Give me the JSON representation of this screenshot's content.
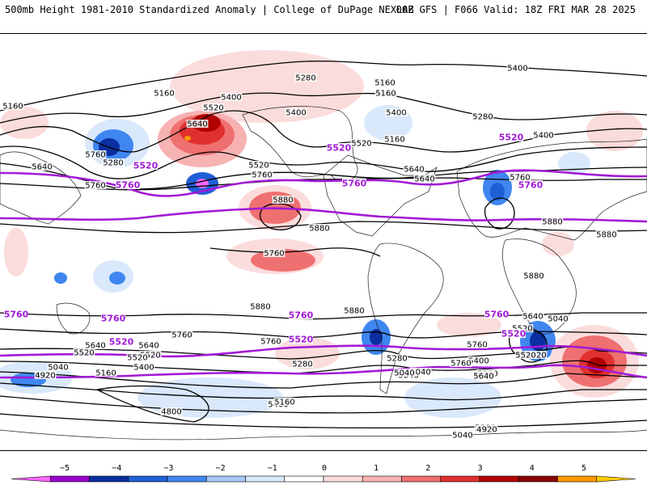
{
  "header": {
    "left": "500mb Height 1981-2010 Standardized Anomaly | College of DuPage NEXLAB",
    "right": "00Z GFS | F066 Valid: 18Z FRI MAR 28 2025"
  },
  "colors": {
    "contour": "#000000",
    "highlight_contour": "#a21ad6",
    "highlight_label": "#a21ad6",
    "coastline": "#222222"
  },
  "map": {
    "projection": "global cylindrical",
    "highlight_contour_values": [
      "5520",
      "5760"
    ],
    "contour_labels": [
      "5160",
      "5280",
      "5160",
      "5160",
      "5160",
      "5400",
      "5520",
      "5640",
      "5400",
      "5400",
      "5520",
      "5160",
      "5280",
      "5400",
      "5160",
      "5400",
      "5760",
      "5280",
      "5640",
      "5520",
      "5640",
      "5760",
      "5640",
      "5760",
      "5760",
      "5880",
      "5880",
      "5760",
      "5880",
      "5880",
      "5880",
      "5880",
      "5880",
      "5760",
      "5760",
      "5760",
      "5640",
      "5520",
      "5640",
      "5520",
      "5520",
      "5400",
      "5280",
      "5040",
      "4920",
      "5160",
      "5040",
      "4800",
      "5760",
      "5640",
      "5520",
      "5400",
      "5280",
      "5160",
      "5040",
      "4920",
      "5760",
      "5520",
      "5640",
      "5400",
      "5040",
      "5160",
      "5280",
      "5040",
      "5520",
      "5040",
      "4920"
    ],
    "highlight_labels": [
      "5520",
      "5520",
      "5520",
      "5760",
      "5760",
      "5760",
      "5760",
      "5760",
      "5760",
      "5520",
      "5520",
      "5520",
      "5760"
    ]
  },
  "colorbar": {
    "ticks": [
      "−5",
      "−4",
      "−3",
      "−2",
      "−1",
      "0",
      "1",
      "2",
      "3",
      "4",
      "5"
    ],
    "colors": [
      "#ff66ff",
      "#9900cc",
      "#0b2ea0",
      "#1f5fd6",
      "#3f86f0",
      "#a8c8f8",
      "#d9e8fb",
      "#ffffff",
      "#fbdcdc",
      "#f7b2b2",
      "#ef7070",
      "#e03030",
      "#b00000",
      "#8a0000",
      "#ff9900",
      "#ffcc00"
    ]
  }
}
